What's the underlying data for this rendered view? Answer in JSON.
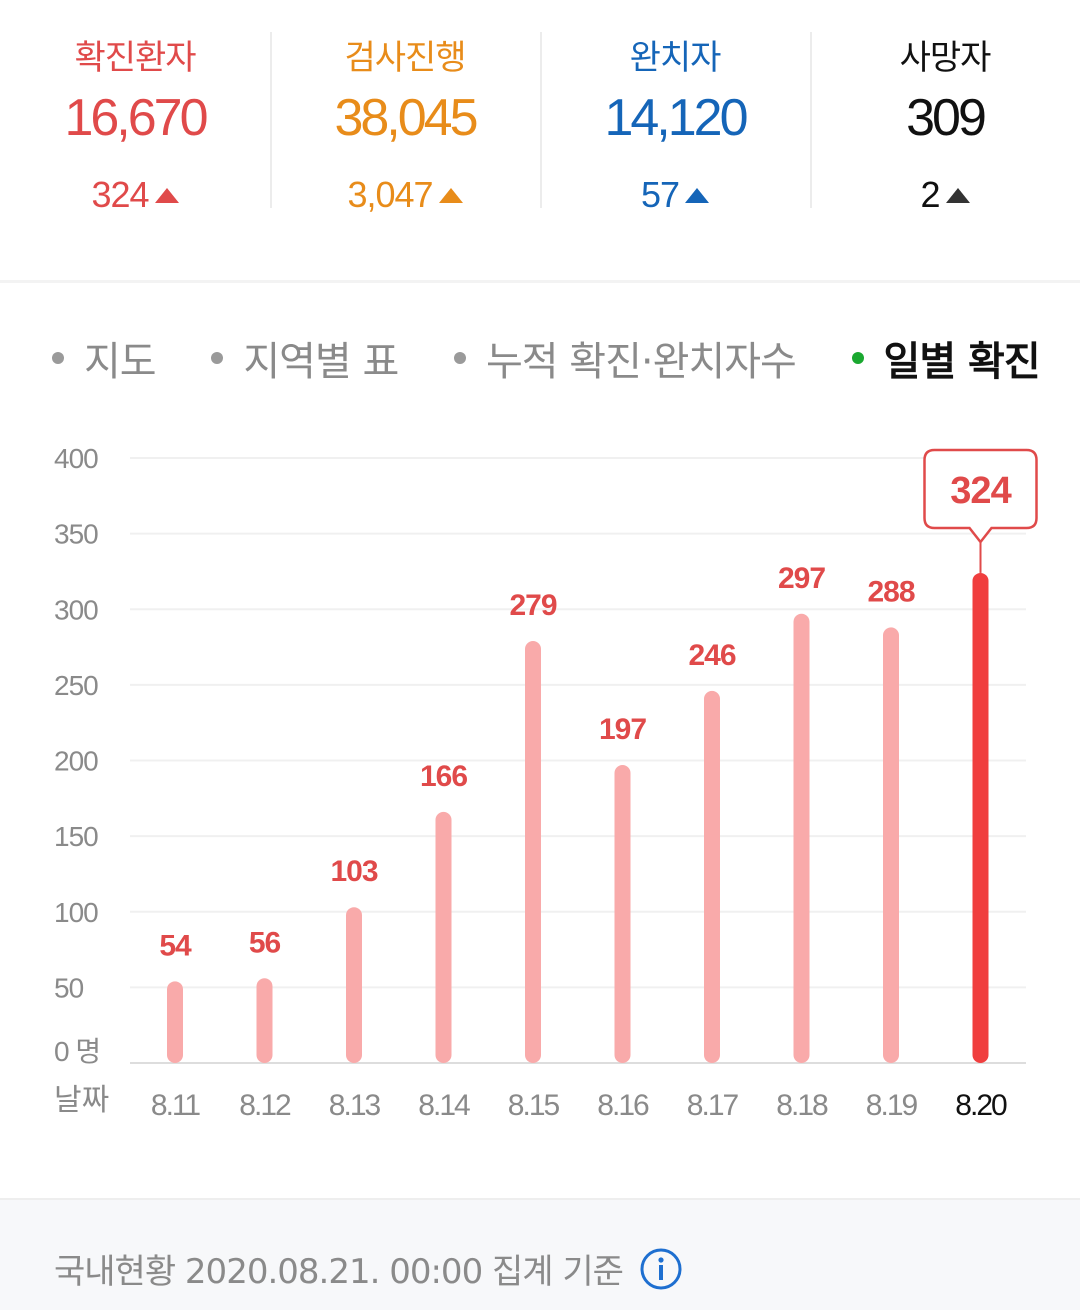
{
  "stats": [
    {
      "label": "확진환자",
      "value": "16,670",
      "delta": "324",
      "color": "#e04a4a"
    },
    {
      "label": "검사진행",
      "value": "38,045",
      "delta": "3,047",
      "color": "#e88c1a"
    },
    {
      "label": "완치자",
      "value": "14,120",
      "delta": "57",
      "color": "#1565b8"
    },
    {
      "label": "사망자",
      "value": "309",
      "delta": "2",
      "color": "#111111"
    }
  ],
  "tabs": [
    {
      "label": "지도",
      "active": false
    },
    {
      "label": "지역별 표",
      "active": false
    },
    {
      "label": "누적 확진·완치자수",
      "active": false
    },
    {
      "label": "일별 확진",
      "active": true
    }
  ],
  "chart_data": {
    "type": "bar",
    "categories": [
      "8.11",
      "8.12",
      "8.13",
      "8.14",
      "8.15",
      "8.16",
      "8.17",
      "8.18",
      "8.19",
      "8.20"
    ],
    "values": [
      54,
      56,
      103,
      166,
      279,
      197,
      246,
      297,
      288,
      324
    ],
    "highlight_index": 9,
    "highlight_label": "324",
    "yticks": [
      "0",
      "50",
      "100",
      "150",
      "200",
      "250",
      "300",
      "350",
      "400"
    ],
    "yunit": "명",
    "ylim": [
      0,
      400
    ],
    "xlabel": "날짜",
    "grid": true,
    "bar_color": "#f9aaaa",
    "highlight_color": "#f03e3e",
    "label_color": "#e04a4a"
  },
  "footer": {
    "text": "국내현황 2020.08.21. 00:00 집계 기준",
    "icon": "info-icon"
  }
}
